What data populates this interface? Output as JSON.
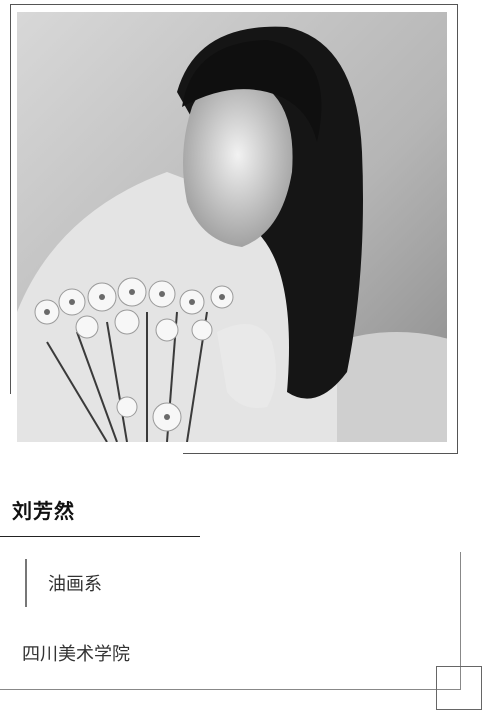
{
  "profile": {
    "name": "刘芳然",
    "department": "油画系",
    "school": "四川美术学院"
  },
  "photo": {
    "description_icon": "portrait-photo"
  },
  "colors": {
    "text": "#222222",
    "rule": "#555555",
    "background": "#ffffff"
  }
}
